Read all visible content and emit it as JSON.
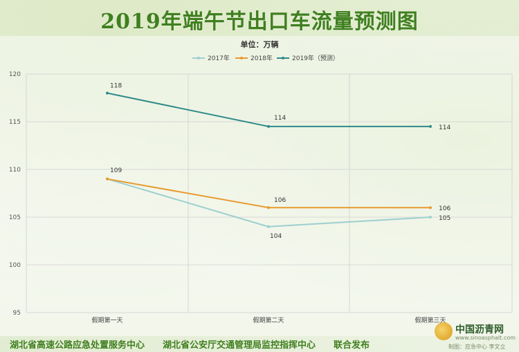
{
  "title": "2019年端午节出口车流量预测图",
  "footer": "湖北省高速公路应急处置服务中心　　湖北省公安厅交通管理局监控指挥中心　　联合发布",
  "logo": {
    "name": "中国沥青网",
    "url": "www.sinoasphalt.com",
    "credit": "制图：应急中心 李文立"
  },
  "colors": {
    "title": "#3f7f1f",
    "grid": "#cfcfcf",
    "s2017": "#9ccfcf",
    "s2018": "#e89a2e",
    "s2019": "#2f8a8a"
  },
  "chart_data": {
    "type": "line",
    "unit_label": "单位：万辆",
    "categories": [
      "假期第一天",
      "假期第二天",
      "假期第三天"
    ],
    "ylim": [
      95,
      120
    ],
    "yticks": [
      95,
      100,
      105,
      110,
      115,
      120
    ],
    "grid": true,
    "legend_position": "top",
    "series": [
      {
        "name": "2017年",
        "values": [
          109,
          104,
          105
        ],
        "labels": [
          "",
          "104",
          "105"
        ],
        "color": "#9ccfcf"
      },
      {
        "name": "2018年",
        "values": [
          109,
          106,
          106
        ],
        "labels": [
          "109",
          "106",
          "106"
        ],
        "color": "#e89a2e"
      },
      {
        "name": "2019年（预测）",
        "values": [
          118,
          114.5,
          114.5
        ],
        "labels": [
          "118",
          "114",
          "114"
        ],
        "color": "#2f8a8a"
      }
    ]
  }
}
